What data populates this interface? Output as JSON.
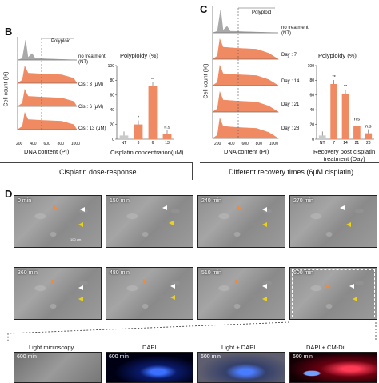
{
  "panels": {
    "B": "B",
    "C": "C",
    "D": "D"
  },
  "panel_b": {
    "histogram_label_polyploid": "Polyploid",
    "histogram_rows": [
      "no treatment\n(NT)",
      "Cis : 3 (μM)",
      "Cis : 6 (μM)",
      "Cis : 13 (μM)"
    ],
    "histogram_xticks": [
      "200",
      "400",
      "600",
      "800",
      "1000"
    ],
    "ylabel": "Cell count (%)",
    "xlabel": "DNA content (PI)",
    "caption": "Cisplatin dose-response"
  },
  "panel_c": {
    "histogram_label_polyploid": "Polyploid",
    "histogram_rows": [
      "no treatment\n(NT)",
      "Day : 7",
      "Day : 14",
      "Day : 21",
      "Day : 28"
    ],
    "histogram_xticks": [
      "200",
      "400",
      "600",
      "800",
      "1000"
    ],
    "ylabel": "Cell count (%)",
    "xlabel": "DNA content (PI)",
    "caption": "Different recovery times (6μM cisplatin)"
  },
  "chart_data": [
    {
      "type": "bar",
      "title": "Polyploidy (%)",
      "categories": [
        "NT",
        "3",
        "6",
        "13"
      ],
      "values": [
        5,
        20,
        72,
        7
      ],
      "significance": [
        "",
        "*",
        "**",
        "n.s"
      ],
      "xlabel": "Cisplatin concentration(μM)",
      "ylabel": "",
      "ylim": [
        0,
        100
      ],
      "yticks": [
        "0",
        "20",
        "40",
        "60",
        "80",
        "100"
      ],
      "colors": [
        "#c9c9c9",
        "#f08a62",
        "#f08a62",
        "#f08a62"
      ]
    },
    {
      "type": "bar",
      "title": "Polyploidy (%)",
      "categories": [
        "NT",
        "7",
        "14",
        "21",
        "28"
      ],
      "values": [
        5,
        75,
        62,
        18,
        8
      ],
      "significance": [
        "",
        "**",
        "**",
        "n.s",
        "n.s"
      ],
      "xlabel": "Recovery post cisplatin\ntreatment (Day)",
      "ylabel": "",
      "ylim": [
        0,
        100
      ],
      "yticks": [
        "0",
        "20",
        "40",
        "60",
        "80",
        "100"
      ],
      "colors": [
        "#c9c9c9",
        "#f08a62",
        "#f08a62",
        "#f08a62",
        "#f08a62"
      ]
    }
  ],
  "panel_d": {
    "timepoints": [
      "0 min",
      "150 min",
      "240 min",
      "270 min",
      "360 min",
      "480 min",
      "510 min",
      "600 min"
    ],
    "scalebar": "100 um",
    "bottom_headers": [
      "Light microscopy",
      "DAPI",
      "Light + DAPI",
      "DAPI + CM-DiI"
    ],
    "bottom_times": [
      "600 min",
      "600 min",
      "600 min",
      "600 min"
    ]
  },
  "colors": {
    "histogram_fill": "#f08a62",
    "control_fill": "#a9a9a9",
    "arrow_orange": "#f08a3c",
    "arrow_white": "#ffffff",
    "arrow_yellow": "#e8d21f"
  }
}
